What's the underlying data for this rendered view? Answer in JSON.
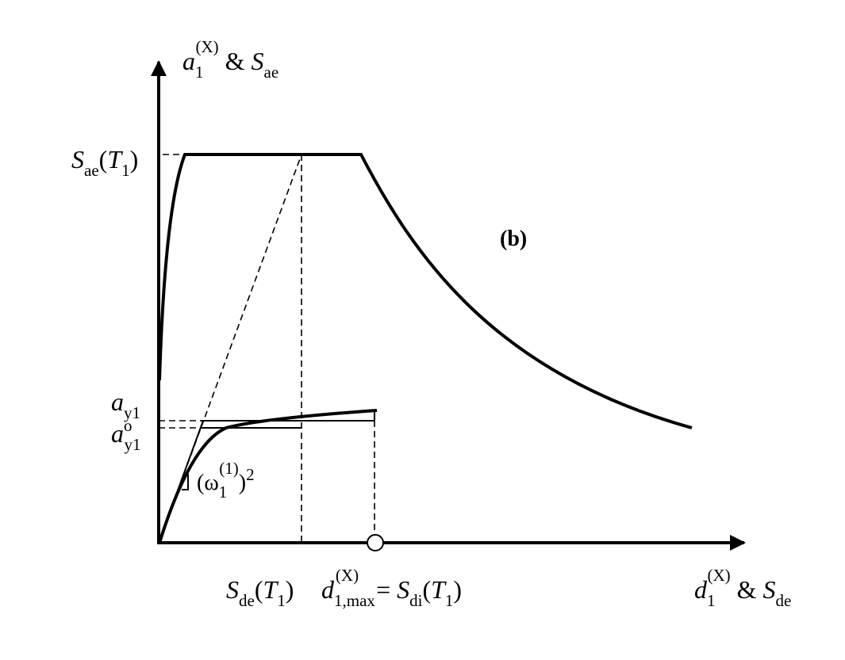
{
  "y_axis_label": {
    "parts": [
      "a",
      "1",
      "(X)",
      " & ",
      "S",
      "ae"
    ]
  },
  "x_axis_label": {
    "parts": [
      "d",
      "1",
      "(X)",
      " & ",
      "S",
      "de"
    ]
  },
  "sae_label": {
    "parts": [
      "S",
      "ae",
      "(",
      "T",
      "1",
      ")"
    ]
  },
  "panel_label": "(b)",
  "ay1_label": {
    "parts": [
      "a",
      "y1"
    ]
  },
  "ay1o_label": {
    "parts": [
      "a",
      "o",
      "y1"
    ]
  },
  "slope_label": {
    "parts": [
      "(ω",
      "1",
      "(1)",
      ")",
      "2"
    ]
  },
  "sde_label": {
    "parts": [
      "S",
      "de",
      "(",
      "T",
      "1",
      ")"
    ]
  },
  "dmax_label": {
    "parts": [
      "d",
      "1,max",
      "(X)",
      " = ",
      "S",
      "di",
      "(",
      "T",
      "1",
      ")"
    ]
  }
}
